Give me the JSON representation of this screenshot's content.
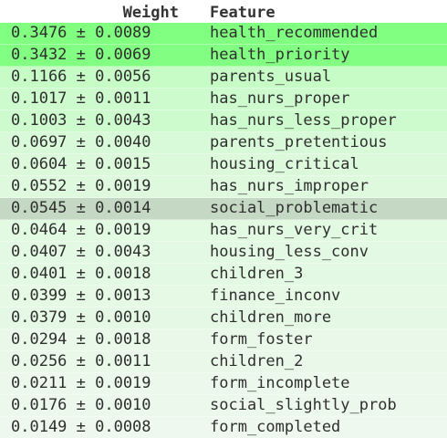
{
  "header": {
    "weight_label": "Weight",
    "feature_label": "Feature"
  },
  "rows": [
    {
      "weight": "0.3476 ± 0.0089",
      "feature": "health_recommended",
      "color": "#80ff80"
    },
    {
      "weight": "0.3432 ± 0.0069",
      "feature": "health_priority",
      "color": "#82ff82"
    },
    {
      "weight": "0.1166 ± 0.0056",
      "feature": "parents_usual",
      "color": "#c7fcc7"
    },
    {
      "weight": "0.1017 ± 0.0011",
      "feature": "has_nurs_proper",
      "color": "#cdfbcd"
    },
    {
      "weight": "0.1003 ± 0.0043",
      "feature": "has_nurs_less_proper",
      "color": "#cefbce"
    },
    {
      "weight": "0.0697 ± 0.0040",
      "feature": "parents_pretentious",
      "color": "#d9fad9"
    },
    {
      "weight": "0.0604 ± 0.0015",
      "feature": "housing_critical",
      "color": "#dcf9dc"
    },
    {
      "weight": "0.0552 ± 0.0019",
      "feature": "has_nurs_improper",
      "color": "#def9de"
    },
    {
      "weight": "0.0545 ± 0.0014",
      "feature": "social_problematic",
      "color": "#c4d8c4"
    },
    {
      "weight": "0.0464 ± 0.0019",
      "feature": "has_nurs_very_crit",
      "color": "#e2f9e2"
    },
    {
      "weight": "0.0407 ± 0.0043",
      "feature": "housing_less_conv",
      "color": "#e4f9e4"
    },
    {
      "weight": "0.0401 ± 0.0018",
      "feature": "children_3",
      "color": "#e4f9e4"
    },
    {
      "weight": "0.0399 ± 0.0013",
      "feature": "finance_inconv",
      "color": "#e5f9e5"
    },
    {
      "weight": "0.0379 ± 0.0010",
      "feature": "children_more",
      "color": "#e5f8e5"
    },
    {
      "weight": "0.0294 ± 0.0018",
      "feature": "form_foster",
      "color": "#e9f8e9"
    },
    {
      "weight": "0.0256 ± 0.0011",
      "feature": "children_2",
      "color": "#eaf8ea"
    },
    {
      "weight": "0.0211 ± 0.0019",
      "feature": "form_incomplete",
      "color": "#ecf8ec"
    },
    {
      "weight": "0.0176 ± 0.0010",
      "feature": "social_slightly_prob",
      "color": "#edf8ed"
    },
    {
      "weight": "0.0149 ± 0.0008",
      "feature": "form_completed",
      "color": "#eef8ee"
    }
  ]
}
